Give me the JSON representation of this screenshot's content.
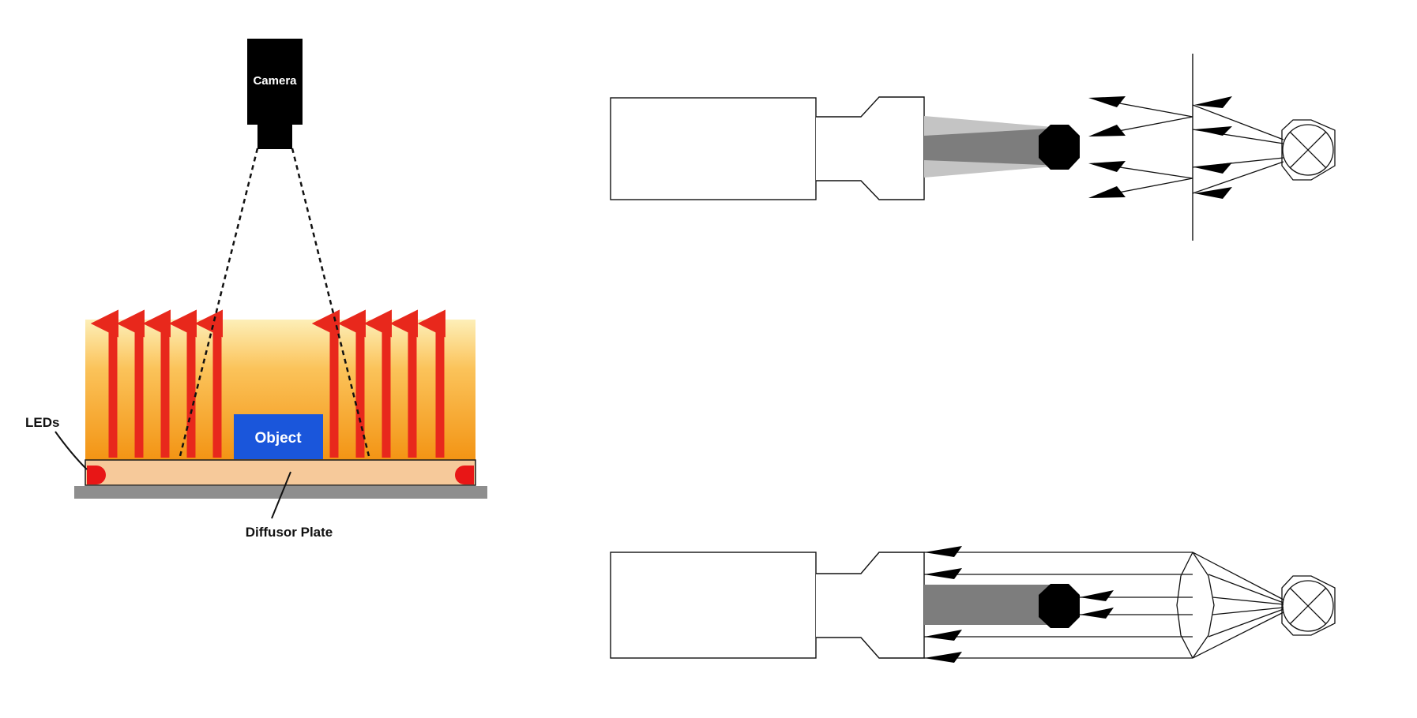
{
  "left_figure": {
    "camera_label": "Camera",
    "object_label": "Object",
    "leds_label": "LEDs",
    "diffusor_label": "Diffusor Plate",
    "colors": {
      "camera": "#000000",
      "object": "#1a56db",
      "ray": "#e8281c",
      "glow_top": "#fde9a8",
      "glow_bottom": "#f49a12",
      "diffusor": "#f6c99a",
      "base": "#8e8e8e",
      "led": "#e81616"
    }
  },
  "right_figure": {
    "colors": {
      "shadow_light": "#c4c4c4",
      "shadow_dark": "#7d7d7d",
      "object": "#000000",
      "outline": "#000000"
    }
  }
}
